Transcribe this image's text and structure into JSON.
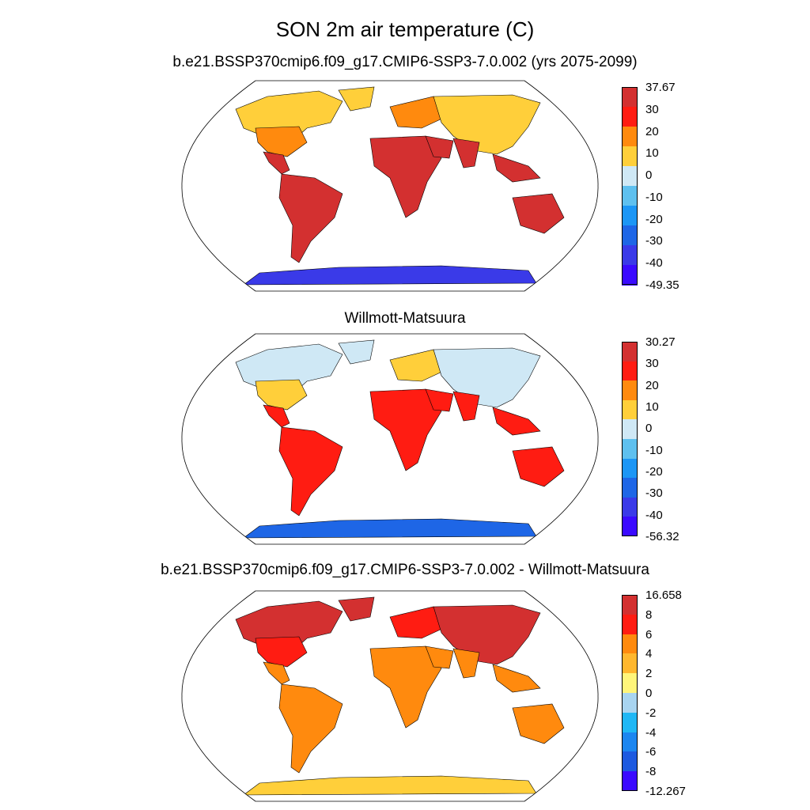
{
  "title": "SON 2m air temperature (C)",
  "panels": [
    {
      "subtitle": "b.e21.BSSP370cmip6.f09_g17.CMIP6-SSP3-7.0.002 (yrs 2075-2099)",
      "colorbar": {
        "labels": [
          "37.67",
          "30",
          "20",
          "10",
          "0",
          "-10",
          "-20",
          "-30",
          "-40",
          "-49.35"
        ],
        "colors": [
          "#d33030",
          "#ff1c12",
          "#ff8a0e",
          "#ffcf3a",
          "#cfe8f5",
          "#5ec0ef",
          "#1c96f5",
          "#1e66e6",
          "#3a3ae8",
          "#3a0aff"
        ]
      },
      "map": {
        "land": "#d33030",
        "north": "#ffcf3a",
        "mid": "#ff8a0e",
        "antarctica": "#3a3ae8"
      }
    },
    {
      "subtitle": "Willmott-Matsuura",
      "colorbar": {
        "labels": [
          "30.27",
          "30",
          "20",
          "10",
          "0",
          "-10",
          "-20",
          "-30",
          "-40",
          "-56.32"
        ],
        "colors": [
          "#d33030",
          "#ff1c12",
          "#ff8a0e",
          "#ffcf3a",
          "#cfe8f5",
          "#5ec0ef",
          "#1c96f5",
          "#1e66e6",
          "#3a3ae8",
          "#3a0aff"
        ]
      },
      "map": {
        "land": "#ff1c12",
        "north": "#cfe8f5",
        "mid": "#ffcf3a",
        "antarctica": "#1e66e6"
      }
    },
    {
      "subtitle": "b.e21.BSSP370cmip6.f09_g17.CMIP6-SSP3-7.0.002 - Willmott-Matsuura",
      "colorbar": {
        "labels": [
          "16.658",
          "8",
          "6",
          "4",
          "2",
          "0",
          "-2",
          "-4",
          "-6",
          "-8",
          "-12.267"
        ],
        "colors": [
          "#d33030",
          "#ff1c12",
          "#ff8a0e",
          "#ffb72e",
          "#fff57a",
          "#a8d4f0",
          "#1fb7f5",
          "#1c86f0",
          "#1e5ae0",
          "#3a0aff"
        ]
      },
      "map": {
        "land": "#ff8a0e",
        "north": "#d33030",
        "mid": "#ff1c12",
        "antarctica": "#ffcf3a"
      }
    }
  ]
}
